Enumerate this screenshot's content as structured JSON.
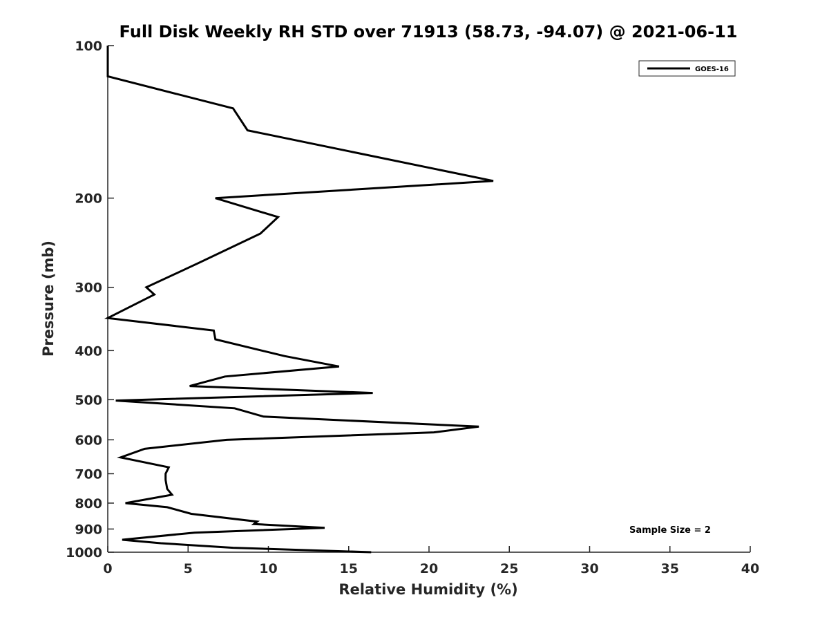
{
  "chart_data": {
    "type": "line",
    "title": "Full Disk Weekly RH STD over 71913 (58.73, -94.07) @ 2021-06-11",
    "xlabel": "Relative Humidity (%)",
    "ylabel": "Pressure (mb)",
    "xlim": [
      0,
      40
    ],
    "ylim": [
      100,
      1000
    ],
    "y_scale": "log",
    "y_reversed": true,
    "x_ticks": [
      0,
      5,
      10,
      15,
      20,
      25,
      30,
      35,
      40
    ],
    "y_ticks": [
      100,
      200,
      300,
      400,
      500,
      600,
      700,
      800,
      900,
      1000
    ],
    "grid": false,
    "legend_position": "top-right",
    "annotation": "Sample Size = 2",
    "series": [
      {
        "name": "GOES-16",
        "color": "#000000",
        "x": [
          0,
          0,
          7.8,
          8.7,
          24.0,
          6.7,
          10.6,
          9.5,
          5.5,
          2.4,
          2.9,
          0,
          6.6,
          6.7,
          11.0,
          14.4,
          7.3,
          5.1,
          16.5,
          0.5,
          7.9,
          9.7,
          23.1,
          20.3,
          7.4,
          2.3,
          0.8,
          3.8,
          3.6,
          3.6,
          3.7,
          4.0,
          1.1,
          3.7,
          5.2,
          9.3,
          9.1,
          13.5,
          5.4,
          0.9,
          3.3,
          7.8,
          16.4
        ],
        "y": [
          100,
          115,
          133,
          147,
          185,
          200,
          218,
          235,
          270,
          300,
          310,
          345,
          365,
          380,
          410,
          430,
          450,
          470,
          485,
          502,
          520,
          540,
          565,
          580,
          600,
          625,
          650,
          680,
          700,
          720,
          750,
          770,
          800,
          815,
          840,
          870,
          880,
          895,
          915,
          945,
          960,
          980,
          1000
        ]
      }
    ]
  }
}
